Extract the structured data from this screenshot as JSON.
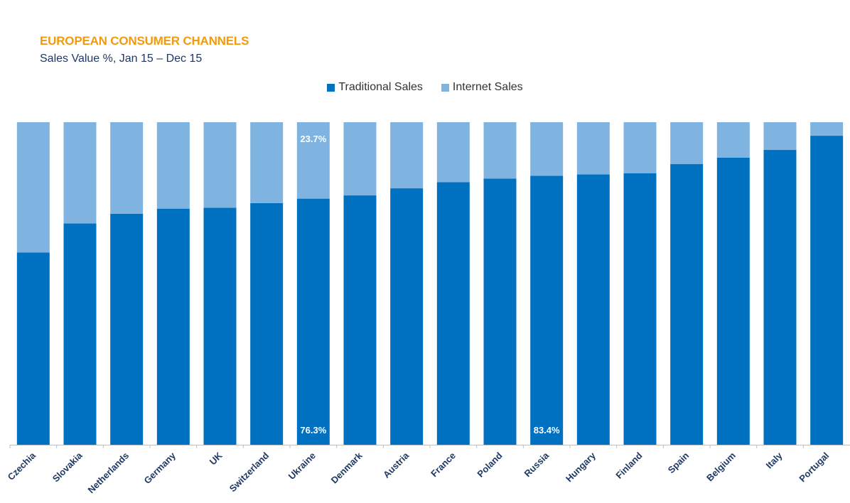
{
  "chart_data": {
    "type": "bar",
    "stacked": true,
    "title": "EUROPEAN CONSUMER CHANNELS",
    "subtitle": "Sales Value %, Jan 15 – Dec 15",
    "categories": [
      "Czechia",
      "Slovakia",
      "Netherlands",
      "Germany",
      "UK",
      "Switzerland",
      "Ukraine",
      "Denmark",
      "Austria",
      "France",
      "Poland",
      "Russia",
      "Hungary",
      "Finland",
      "Spain",
      "Belgium",
      "Italy",
      "Portugal"
    ],
    "series": [
      {
        "name": "Traditional Sales",
        "color": "#0070c0",
        "values": [
          59.6,
          68.6,
          71.6,
          73.2,
          73.5,
          74.9,
          76.3,
          77.3,
          79.5,
          81.4,
          82.5,
          83.4,
          83.8,
          84.2,
          87.0,
          89.0,
          91.4,
          95.8
        ]
      },
      {
        "name": "Internet Sales",
        "color": "#7fb4e0",
        "values": [
          40.4,
          31.4,
          28.4,
          26.8,
          26.5,
          25.1,
          23.7,
          22.7,
          20.5,
          18.6,
          17.5,
          16.6,
          16.2,
          15.8,
          13.0,
          11.0,
          8.6,
          4.2
        ]
      }
    ],
    "ylim": [
      0,
      100
    ],
    "legend_position": "top",
    "grid": false,
    "data_labels": [
      {
        "category": "Ukraine",
        "series": "Internet Sales",
        "text": "23.7%"
      },
      {
        "category": "Ukraine",
        "series": "Traditional Sales",
        "text": "76.3%"
      },
      {
        "category": "Russia",
        "series": "Traditional Sales",
        "text": "83.4%"
      }
    ]
  }
}
